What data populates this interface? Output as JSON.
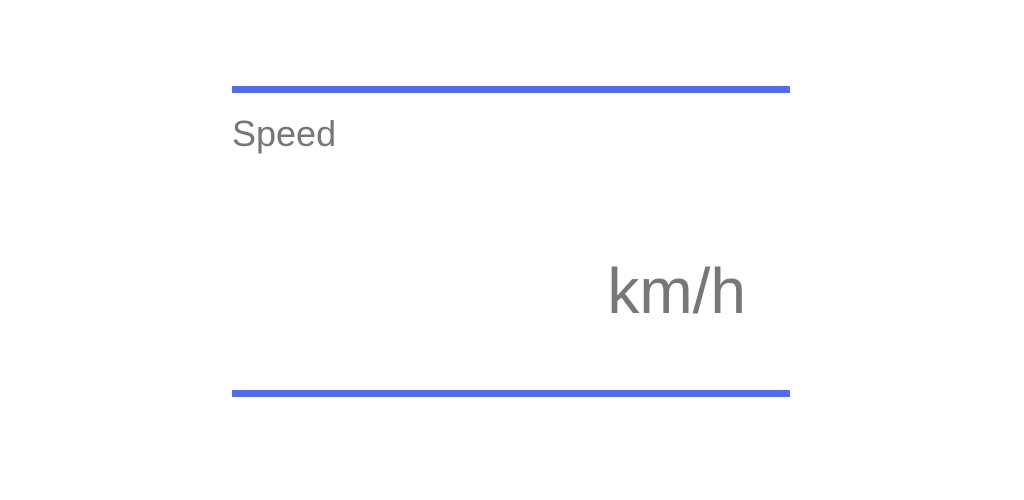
{
  "widget": {
    "label": "Speed",
    "value": "",
    "unit": "km/h"
  },
  "colors": {
    "accent": "#4d6bfe",
    "text_muted": "#777777",
    "background": "#ffffff"
  }
}
